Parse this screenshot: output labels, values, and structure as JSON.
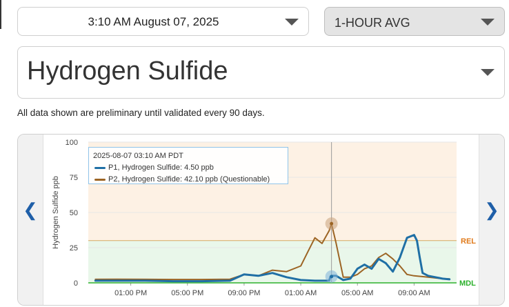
{
  "date_select": {
    "value": "3:10 AM August 07, 2025"
  },
  "average_select": {
    "value": "1-HOUR AVG"
  },
  "pollutant_select": {
    "value": "Hydrogen Sulfide"
  },
  "disclaimer": "All data shown are preliminary until validated every 90 days.",
  "colors": {
    "p1": "#1f6fa5",
    "p2": "#9c6424",
    "rel": "#e07a1a",
    "mdl": "#2bb02b",
    "nav": "#1f5fa8"
  },
  "icons": {
    "prev": "chevron-left-icon",
    "next": "chevron-right-icon",
    "dropdown": "caret-down-icon"
  },
  "tooltip": {
    "header": "2025-08-07 03:10 AM PDT",
    "p1": "P1, Hydrogen Sulfide: 4.50 ppb",
    "p2": "P2, Hydrogen Sulfide: 42.10 ppb (Questionable)"
  },
  "chart_data": {
    "type": "line",
    "ylabel": "Hydrogen Sulfide ppb",
    "ylim": [
      0,
      100
    ],
    "yticks": [
      "0",
      "25",
      "50",
      "75",
      "100"
    ],
    "xticks": [
      "01:00 PM",
      "05:00 PM",
      "09:00 PM",
      "01:00 AM",
      "05:00 AM",
      "09:00 AM"
    ],
    "xtick_hours": [
      13,
      17,
      21,
      25,
      29,
      33
    ],
    "xlim_hours": [
      10,
      36
    ],
    "thresholds": [
      {
        "label": "REL",
        "value": 30
      },
      {
        "label": "MDL",
        "value": 0
      }
    ],
    "crosshair_hour": 27.17,
    "series": [
      {
        "name": "P1, Hydrogen Sulfide",
        "x": [
          10.5,
          12,
          14,
          16,
          18,
          20,
          21,
          22,
          23,
          24,
          25,
          26,
          27,
          27.1,
          27.2,
          27.5,
          28,
          28.5,
          29,
          29.5,
          30,
          30.5,
          31,
          31.5,
          32,
          32.5,
          33,
          33.2,
          33.4,
          33.6,
          34,
          34.5,
          35,
          35.5
        ],
        "y": [
          1.5,
          1.5,
          1.5,
          1.2,
          1.2,
          1.5,
          6,
          5,
          7,
          4,
          2,
          1.5,
          1.5,
          4.5,
          5,
          5,
          2,
          3,
          10,
          13,
          10,
          17,
          14,
          8,
          18,
          32,
          34,
          30,
          18,
          7,
          5,
          4,
          3,
          2.5
        ]
      },
      {
        "name": "P2, Hydrogen Sulfide",
        "x": [
          10.5,
          12,
          14,
          16,
          18,
          20,
          21,
          22,
          23,
          24,
          25,
          25.5,
          26,
          26.5,
          27,
          27.17,
          27.5,
          28,
          28.5,
          29,
          29.5,
          30,
          30.5,
          31,
          31.5,
          32,
          32.5,
          33,
          33.5,
          34,
          34.5,
          35,
          35.5
        ],
        "y": [
          2.5,
          2.6,
          2.5,
          2.4,
          2.4,
          2.6,
          6,
          5,
          9,
          8,
          12,
          22,
          32,
          28,
          37,
          42.1,
          28,
          4,
          4,
          6,
          10,
          12,
          18,
          21,
          17,
          12,
          6,
          5,
          4.5,
          4,
          3.5,
          3,
          2.8
        ]
      }
    ]
  }
}
